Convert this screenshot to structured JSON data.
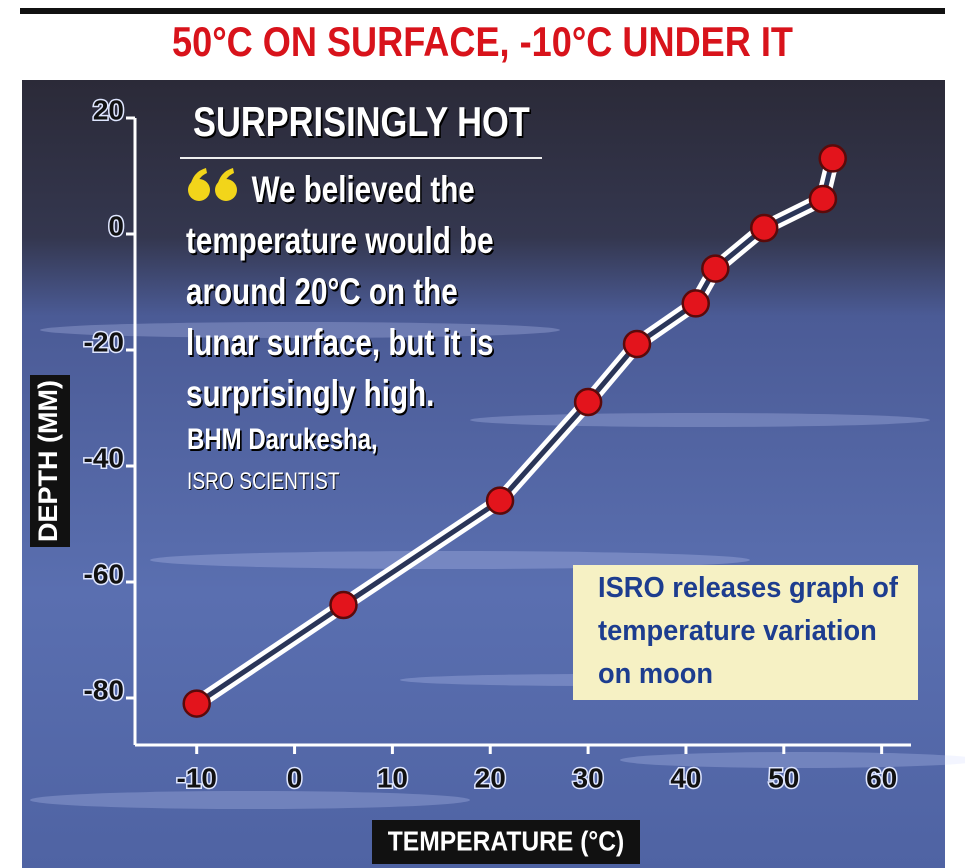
{
  "chart_data": {
    "type": "line",
    "title": "50°C ON SURFACE, -10°C UNDER IT",
    "x_label": "TEMPERATURE (°C)",
    "y_label": "DEPTH (MM)",
    "x": [
      -10,
      5,
      21,
      30,
      35,
      41,
      43,
      48,
      54,
      55
    ],
    "values": [
      -82,
      -65,
      -47,
      -30,
      -20,
      -13,
      -7,
      0,
      5,
      12
    ],
    "color": "#e3141c",
    "line_color": "#ffffff",
    "xlim": [
      -16,
      63
    ],
    "xticks": [
      -10,
      0,
      10,
      20,
      30,
      40,
      50,
      60
    ],
    "ylim": [
      -90,
      25
    ],
    "yticks": [
      20,
      0,
      -20,
      -40,
      -60,
      -80
    ],
    "annotations": {
      "heading": "SURPRISINGLY HOT",
      "quote": "We believed the temperature would be around 20°C on the lunar surface, but it is surprisingly high.",
      "attribution": "BHM Darukesha,",
      "role": "ISRO SCIENTIST",
      "note": "ISRO releases graph of temperature variation on moon"
    }
  }
}
